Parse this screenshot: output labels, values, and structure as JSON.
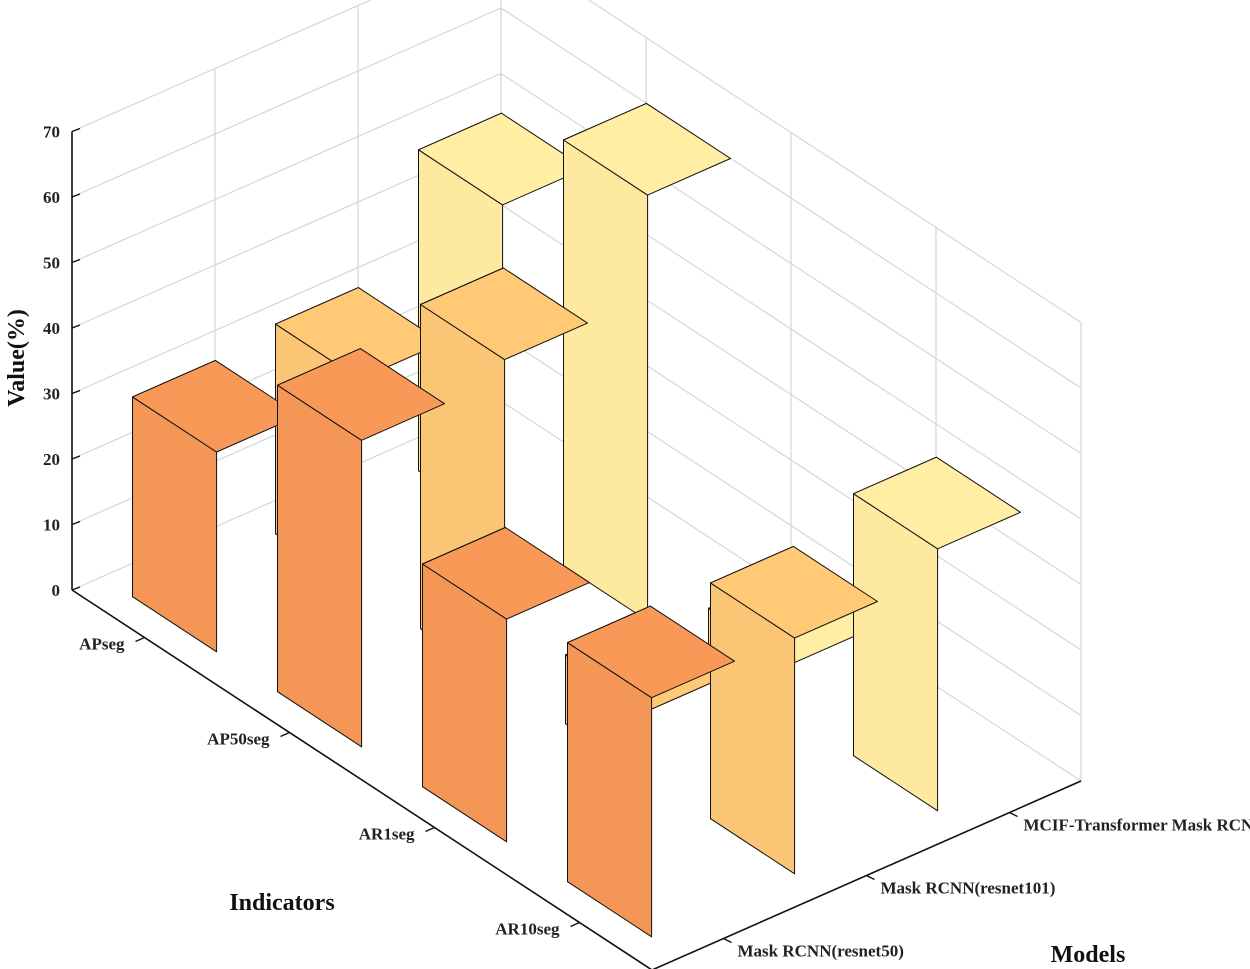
{
  "chart_data": {
    "type": "bar3d",
    "title": "",
    "zlabel": "Value(%)",
    "xlabel": "Indicators",
    "ylabel": "Models",
    "zlim": [
      0,
      70
    ],
    "zticks": [
      0,
      10,
      20,
      30,
      40,
      50,
      60,
      70
    ],
    "grid": true,
    "categories": [
      "APseg",
      "AP50seg",
      "AR1seg",
      "AR10seg"
    ],
    "series": [
      {
        "name": "Mask RCNN(resnet50)",
        "color": "#F39656",
        "values": [
          30.5,
          46.8,
          34.0,
          36.5
        ]
      },
      {
        "name": "Mask RCNN(resnet101)",
        "color": "#FAC574",
        "values": [
          32.0,
          49.5,
          10.5,
          36.0
        ]
      },
      {
        "name": "MCIF-Transformer Mask RCNN",
        "color": "#FDE9A0",
        "values": [
          49.0,
          65.0,
          8.0,
          40.0
        ]
      }
    ]
  }
}
